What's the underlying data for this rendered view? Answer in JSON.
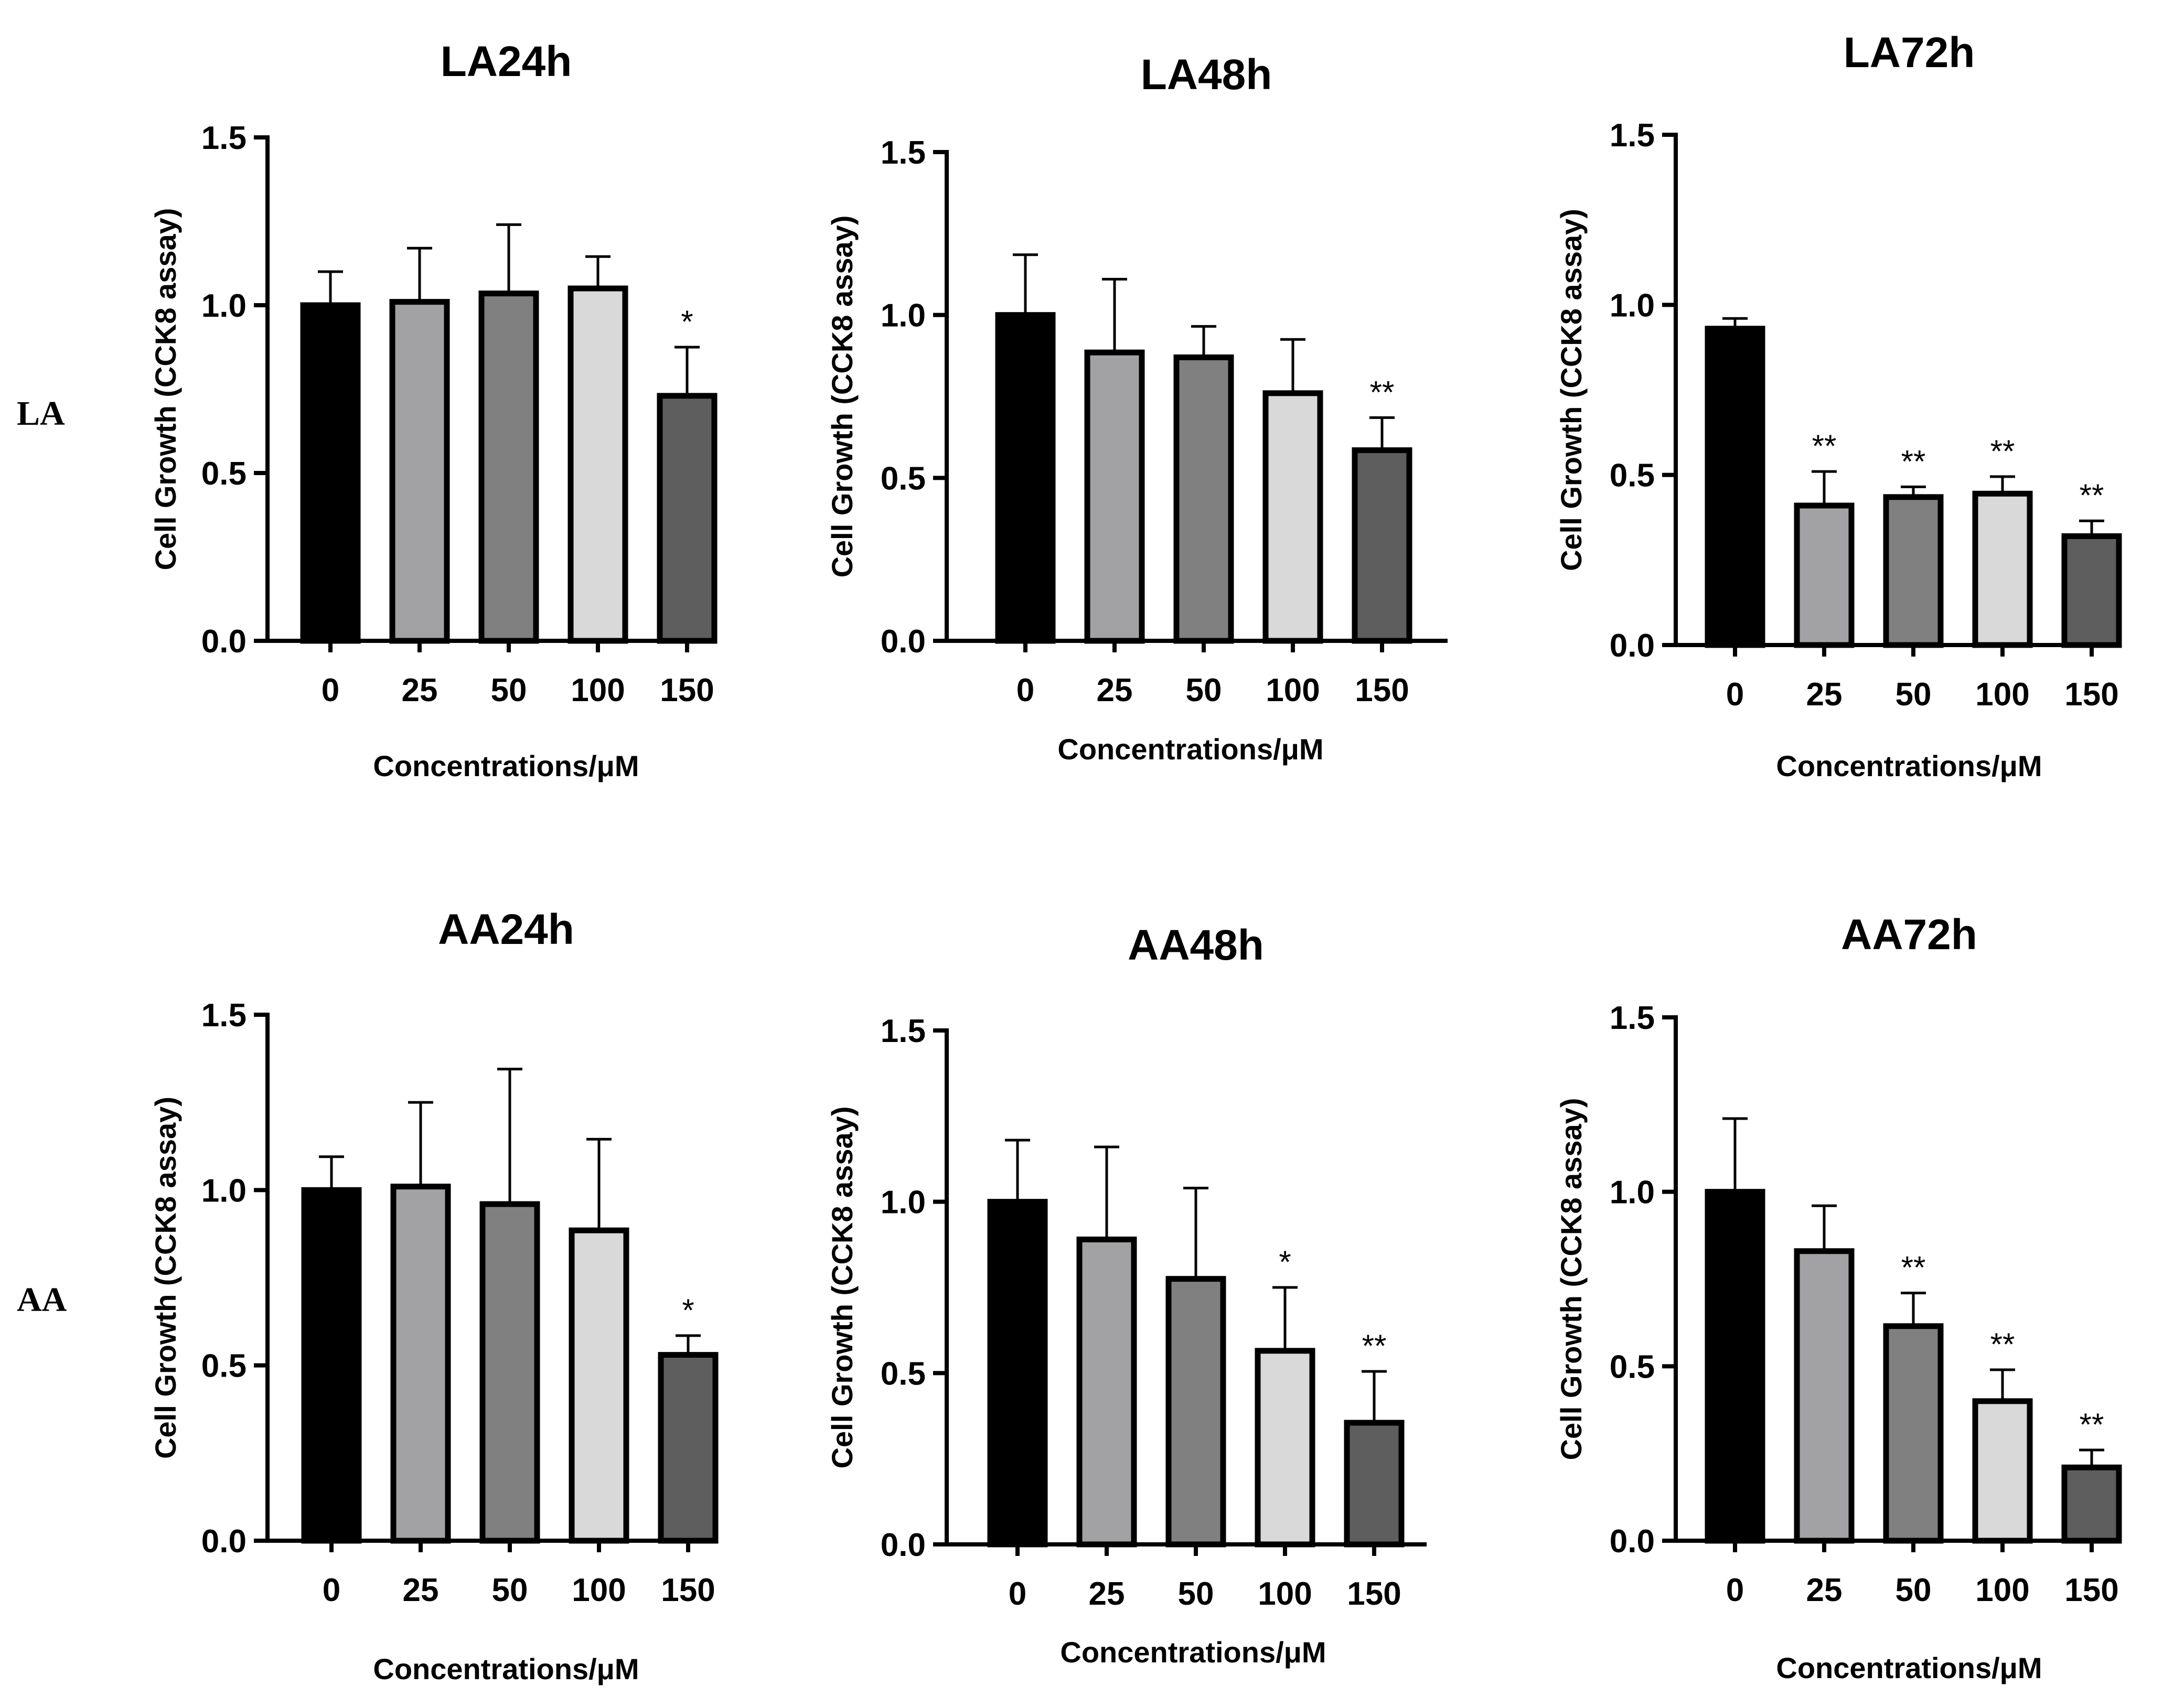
{
  "figure": {
    "row_labels": [
      "LA",
      "AA"
    ],
    "colors": {
      "bar_0": "#000000",
      "bar_25": "#a2a2a4",
      "bar_50": "#808080",
      "bar_100": "#d9d9d9",
      "bar_150": "#5e5e5e"
    }
  },
  "chart_data": [
    {
      "type": "bar",
      "title": "LA24h",
      "xlabel": "Concentrations/μM",
      "ylabel": "Cell Growth (CCK8 assay)",
      "categories": [
        "0",
        "25",
        "50",
        "100",
        "150"
      ],
      "values": [
        1.0,
        1.01,
        1.035,
        1.05,
        0.73
      ],
      "errors": [
        0.1,
        0.16,
        0.205,
        0.095,
        0.145
      ],
      "significance": [
        "",
        "",
        "",
        "",
        "*"
      ],
      "ylim": [
        0,
        1.5
      ],
      "yticks": [
        "0.0",
        "0.5",
        "1.0",
        "1.5"
      ],
      "grid": false
    },
    {
      "type": "bar",
      "title": "LA48h",
      "xlabel": "Concentrations/μM",
      "ylabel": "Cell Growth (CCK8 assay)",
      "categories": [
        "0",
        "25",
        "50",
        "100",
        "150"
      ],
      "values": [
        1.0,
        0.885,
        0.87,
        0.76,
        0.585
      ],
      "errors": [
        0.185,
        0.225,
        0.095,
        0.165,
        0.1
      ],
      "significance": [
        "",
        "",
        "",
        "",
        "**"
      ],
      "ylim": [
        0,
        1.5
      ],
      "yticks": [
        "0.0",
        "0.5",
        "1.0",
        "1.5"
      ],
      "grid": false
    },
    {
      "type": "bar",
      "title": "LA72h",
      "xlabel": "Concentrations/μM",
      "ylabel": "Cell Growth (CCK8 assay)",
      "categories": [
        "0",
        "25",
        "50",
        "100",
        "150"
      ],
      "values": [
        0.93,
        0.41,
        0.435,
        0.445,
        0.32
      ],
      "errors": [
        0.03,
        0.1,
        0.03,
        0.05,
        0.045
      ],
      "significance": [
        "",
        "**",
        "**",
        "**",
        "**"
      ],
      "ylim": [
        0,
        1.5
      ],
      "yticks": [
        "0.0",
        "0.5",
        "1.0",
        "1.5"
      ],
      "grid": false
    },
    {
      "type": "bar",
      "title": "AA24h",
      "xlabel": "Concentrations/μM",
      "ylabel": "Cell Growth (CCK8 assay)",
      "categories": [
        "0",
        "25",
        "50",
        "100",
        "150"
      ],
      "values": [
        1.0,
        1.01,
        0.96,
        0.885,
        0.53
      ],
      "errors": [
        0.095,
        0.24,
        0.385,
        0.26,
        0.055
      ],
      "significance": [
        "",
        "",
        "",
        "",
        "*"
      ],
      "ylim": [
        0,
        1.5
      ],
      "yticks": [
        "0.0",
        "0.5",
        "1.0",
        "1.5"
      ],
      "grid": false
    },
    {
      "type": "bar",
      "title": "AA48h",
      "xlabel": "Concentrations/μM",
      "ylabel": "Cell Growth (CCK8 assay)",
      "categories": [
        "0",
        "25",
        "50",
        "100",
        "150"
      ],
      "values": [
        1.0,
        0.89,
        0.775,
        0.565,
        0.355
      ],
      "errors": [
        0.18,
        0.27,
        0.265,
        0.185,
        0.15
      ],
      "significance": [
        "",
        "",
        "",
        "*",
        "**"
      ],
      "ylim": [
        0,
        1.5
      ],
      "yticks": [
        "0.0",
        "0.5",
        "1.0",
        "1.5"
      ],
      "grid": false
    },
    {
      "type": "bar",
      "title": "AA72h",
      "xlabel": "Concentrations/μM",
      "ylabel": "Cell Growth (CCK8 assay)",
      "categories": [
        "0",
        "25",
        "50",
        "100",
        "150"
      ],
      "values": [
        1.0,
        0.83,
        0.615,
        0.4,
        0.21
      ],
      "errors": [
        0.21,
        0.13,
        0.095,
        0.09,
        0.05
      ],
      "significance": [
        "",
        "",
        "**",
        "**",
        "**"
      ],
      "ylim": [
        0,
        1.5
      ],
      "yticks": [
        "0.0",
        "0.5",
        "1.0",
        "1.5"
      ],
      "grid": false
    }
  ]
}
